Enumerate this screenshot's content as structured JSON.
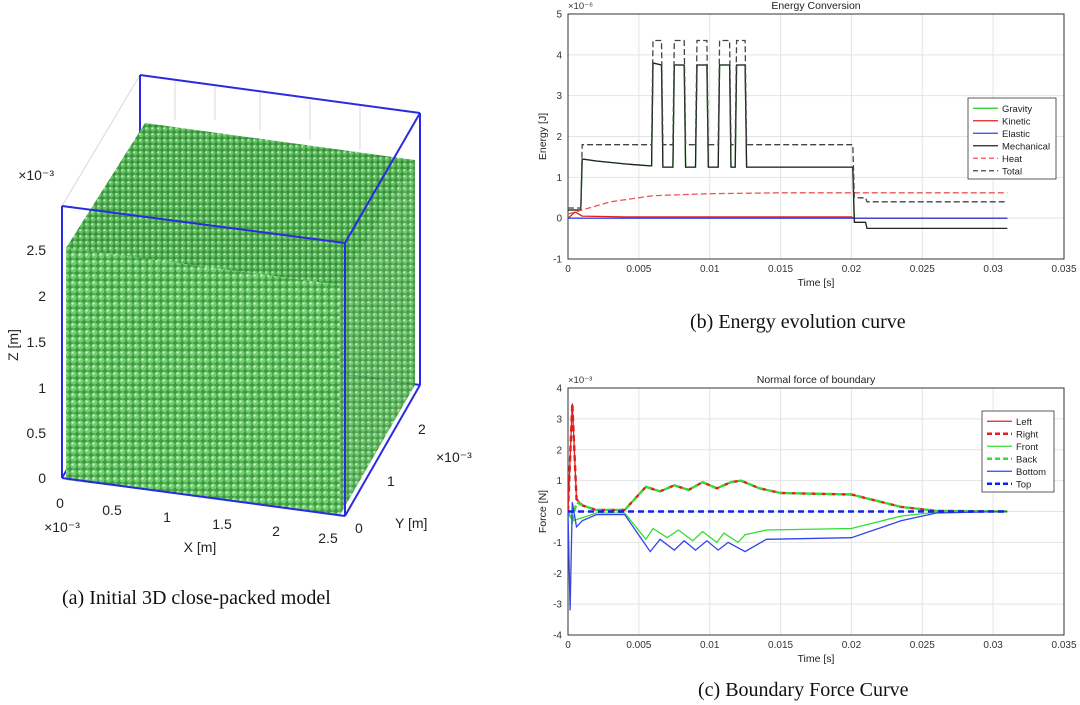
{
  "panel_a": {
    "caption": "(a) Initial 3D close-packed model",
    "z_label": "Z [m]",
    "x_label": "X [m]",
    "y_label": "Y [m]",
    "z_exp": "×10⁻³",
    "x_exp": "×10⁻³",
    "y_exp": "×10⁻³",
    "z_ticks": [
      "0",
      "0.5",
      "1",
      "1.5",
      "2",
      "2.5"
    ],
    "x_ticks": [
      "0",
      "0.5",
      "1",
      "1.5",
      "2",
      "2.5"
    ],
    "y_ticks": [
      "0",
      "1",
      "2"
    ],
    "particle_color": "#5cc15c",
    "frame_color": "#2a2ae0"
  },
  "panel_b": {
    "caption": "(b) Energy evolution curve",
    "chart_data": {
      "type": "line",
      "title": "Energy Conversion",
      "xlabel": "Time [s]",
      "ylabel": "Energy [J]",
      "y_multiplier": "×10⁻⁶",
      "xlim": [
        0,
        0.035
      ],
      "ylim": [
        -1,
        5
      ],
      "x_ticks": [
        "0",
        "0.005",
        "0.01",
        "0.015",
        "0.02",
        "0.025",
        "0.03",
        "0.035"
      ],
      "y_ticks": [
        "-1",
        "0",
        "1",
        "2",
        "3",
        "4",
        "5"
      ],
      "legend_position": "right",
      "series": [
        {
          "name": "Gravity",
          "color": "#22cc22",
          "dash": "solid",
          "points": [
            [
              0,
              0.2
            ],
            [
              0.0009,
              0.2
            ],
            [
              0.001,
              1.45
            ],
            [
              0.002,
              1.4
            ],
            [
              0.004,
              1.33
            ],
            [
              0.0058,
              1.28
            ],
            [
              0.0059,
              1.28
            ],
            [
              0.006,
              3.8
            ],
            [
              0.0066,
              3.75
            ],
            [
              0.0067,
              1.25
            ],
            [
              0.0074,
              1.25
            ],
            [
              0.0075,
              3.75
            ],
            [
              0.0082,
              3.75
            ],
            [
              0.0083,
              1.25
            ],
            [
              0.009,
              1.25
            ],
            [
              0.0091,
              3.75
            ],
            [
              0.0098,
              3.75
            ],
            [
              0.0099,
              1.25
            ],
            [
              0.0106,
              1.25
            ],
            [
              0.0107,
              3.75
            ],
            [
              0.0114,
              3.75
            ],
            [
              0.0115,
              1.25
            ],
            [
              0.0118,
              1.25
            ],
            [
              0.0119,
              3.75
            ],
            [
              0.0125,
              3.75
            ],
            [
              0.0126,
              1.25
            ],
            [
              0.0201,
              1.25
            ],
            [
              0.0202,
              0.0
            ],
            [
              0.031,
              0.0
            ]
          ]
        },
        {
          "name": "Kinetic",
          "color": "#e02020",
          "dash": "solid",
          "points": [
            [
              0,
              0.0
            ],
            [
              0.0005,
              0.15
            ],
            [
              0.001,
              0.05
            ],
            [
              0.004,
              0.03
            ],
            [
              0.02,
              0.03
            ],
            [
              0.0202,
              0.0
            ],
            [
              0.031,
              0.0
            ]
          ]
        },
        {
          "name": "Elastic",
          "color": "#3344ee",
          "dash": "solid",
          "points": [
            [
              0,
              0.0
            ],
            [
              0.031,
              0.0
            ]
          ]
        },
        {
          "name": "Mechanical",
          "color": "#222222",
          "dash": "solid",
          "points": [
            [
              0,
              0.2
            ],
            [
              0.0009,
              0.2
            ],
            [
              0.001,
              1.45
            ],
            [
              0.002,
              1.4
            ],
            [
              0.004,
              1.33
            ],
            [
              0.0058,
              1.28
            ],
            [
              0.0059,
              1.28
            ],
            [
              0.006,
              3.8
            ],
            [
              0.0066,
              3.75
            ],
            [
              0.0067,
              1.25
            ],
            [
              0.0074,
              1.25
            ],
            [
              0.0075,
              3.75
            ],
            [
              0.0082,
              3.75
            ],
            [
              0.0083,
              1.25
            ],
            [
              0.009,
              1.25
            ],
            [
              0.0091,
              3.75
            ],
            [
              0.0098,
              3.75
            ],
            [
              0.0099,
              1.25
            ],
            [
              0.0106,
              1.25
            ],
            [
              0.0107,
              3.75
            ],
            [
              0.0114,
              3.75
            ],
            [
              0.0115,
              1.25
            ],
            [
              0.0118,
              1.25
            ],
            [
              0.0119,
              3.75
            ],
            [
              0.0125,
              3.75
            ],
            [
              0.0126,
              1.25
            ],
            [
              0.0201,
              1.25
            ],
            [
              0.0202,
              -0.1
            ],
            [
              0.021,
              -0.1
            ],
            [
              0.0211,
              -0.25
            ],
            [
              0.031,
              -0.25
            ]
          ]
        },
        {
          "name": "Heat",
          "color": "#ee5555",
          "dash": "dashed",
          "points": [
            [
              0,
              0.1
            ],
            [
              0.001,
              0.2
            ],
            [
              0.003,
              0.4
            ],
            [
              0.006,
              0.55
            ],
            [
              0.01,
              0.6
            ],
            [
              0.015,
              0.62
            ],
            [
              0.02,
              0.62
            ],
            [
              0.031,
              0.62
            ]
          ]
        },
        {
          "name": "Total",
          "color": "#444444",
          "dash": "dashed",
          "points": [
            [
              0,
              0.25
            ],
            [
              0.0009,
              0.25
            ],
            [
              0.001,
              1.8
            ],
            [
              0.0058,
              1.8
            ],
            [
              0.0059,
              1.8
            ],
            [
              0.006,
              4.35
            ],
            [
              0.0066,
              4.35
            ],
            [
              0.0067,
              1.8
            ],
            [
              0.0074,
              1.8
            ],
            [
              0.0075,
              4.35
            ],
            [
              0.0082,
              4.35
            ],
            [
              0.0083,
              1.8
            ],
            [
              0.009,
              1.8
            ],
            [
              0.0091,
              4.35
            ],
            [
              0.0098,
              4.35
            ],
            [
              0.0099,
              1.8
            ],
            [
              0.0106,
              1.8
            ],
            [
              0.0107,
              4.35
            ],
            [
              0.0114,
              4.35
            ],
            [
              0.0115,
              1.8
            ],
            [
              0.0118,
              1.8
            ],
            [
              0.0119,
              4.35
            ],
            [
              0.0125,
              4.35
            ],
            [
              0.0126,
              1.8
            ],
            [
              0.0201,
              1.8
            ],
            [
              0.0202,
              0.5
            ],
            [
              0.021,
              0.5
            ],
            [
              0.0211,
              0.4
            ],
            [
              0.031,
              0.4
            ]
          ]
        }
      ]
    }
  },
  "panel_c": {
    "caption": "(c) Boundary Force Curve",
    "chart_data": {
      "type": "line",
      "title": "Normal force of boundary",
      "xlabel": "Time [s]",
      "ylabel": "Force [N]",
      "y_multiplier": "×10⁻³",
      "xlim": [
        0,
        0.035
      ],
      "ylim": [
        -4,
        4
      ],
      "x_ticks": [
        "0",
        "0.005",
        "0.01",
        "0.015",
        "0.02",
        "0.025",
        "0.03",
        "0.035"
      ],
      "y_ticks": [
        "-4",
        "-3",
        "-2",
        "-1",
        "0",
        "1",
        "2",
        "3",
        "4"
      ],
      "legend_position": "right",
      "series": [
        {
          "name": "Left",
          "color": "#e02020",
          "dash": "solid",
          "points": [
            [
              0,
              0
            ],
            [
              0.0003,
              3.5
            ],
            [
              0.0006,
              0.4
            ],
            [
              0.001,
              0.2
            ],
            [
              0.002,
              0.05
            ],
            [
              0.004,
              0.05
            ],
            [
              0.0055,
              0.8
            ],
            [
              0.0065,
              0.65
            ],
            [
              0.0075,
              0.85
            ],
            [
              0.0085,
              0.7
            ],
            [
              0.0095,
              0.95
            ],
            [
              0.0105,
              0.75
            ],
            [
              0.0115,
              0.95
            ],
            [
              0.0122,
              1.0
            ],
            [
              0.0135,
              0.75
            ],
            [
              0.015,
              0.6
            ],
            [
              0.02,
              0.55
            ],
            [
              0.0235,
              0.15
            ],
            [
              0.026,
              0.02
            ],
            [
              0.031,
              0.0
            ]
          ]
        },
        {
          "name": "Right",
          "color": "#e02020",
          "dash": "dashed",
          "points": [
            [
              0,
              0
            ],
            [
              0.0003,
              3.5
            ],
            [
              0.0006,
              0.4
            ],
            [
              0.001,
              0.2
            ],
            [
              0.002,
              0.05
            ],
            [
              0.004,
              0.05
            ],
            [
              0.0055,
              0.8
            ],
            [
              0.0065,
              0.65
            ],
            [
              0.0075,
              0.85
            ],
            [
              0.0085,
              0.7
            ],
            [
              0.0095,
              0.95
            ],
            [
              0.0105,
              0.75
            ],
            [
              0.0115,
              0.95
            ],
            [
              0.0122,
              1.0
            ],
            [
              0.0135,
              0.75
            ],
            [
              0.015,
              0.6
            ],
            [
              0.02,
              0.55
            ],
            [
              0.0235,
              0.15
            ],
            [
              0.026,
              0.02
            ],
            [
              0.031,
              0.0
            ]
          ]
        },
        {
          "name": "Front",
          "color": "#33dd33",
          "dash": "solid",
          "points": [
            [
              0,
              0
            ],
            [
              0.0003,
              -0.3
            ],
            [
              0.001,
              -0.2
            ],
            [
              0.002,
              -0.05
            ],
            [
              0.004,
              -0.05
            ],
            [
              0.0055,
              -0.9
            ],
            [
              0.006,
              -0.55
            ],
            [
              0.007,
              -0.85
            ],
            [
              0.0078,
              -0.6
            ],
            [
              0.0088,
              -0.95
            ],
            [
              0.0095,
              -0.65
            ],
            [
              0.0105,
              -1.0
            ],
            [
              0.011,
              -0.7
            ],
            [
              0.012,
              -1.0
            ],
            [
              0.0125,
              -0.75
            ],
            [
              0.014,
              -0.6
            ],
            [
              0.02,
              -0.55
            ],
            [
              0.0235,
              -0.15
            ],
            [
              0.026,
              -0.02
            ],
            [
              0.031,
              0.0
            ]
          ]
        },
        {
          "name": "Back",
          "color": "#33dd33",
          "dash": "dashed",
          "points": [
            [
              0,
              0
            ],
            [
              0.0003,
              -0.3
            ],
            [
              0.0006,
              0.3
            ],
            [
              0.001,
              0.2
            ],
            [
              0.002,
              0.05
            ],
            [
              0.004,
              0.05
            ],
            [
              0.0055,
              0.8
            ],
            [
              0.0065,
              0.65
            ],
            [
              0.0075,
              0.85
            ],
            [
              0.0085,
              0.7
            ],
            [
              0.0095,
              0.95
            ],
            [
              0.0105,
              0.75
            ],
            [
              0.0115,
              0.95
            ],
            [
              0.0122,
              1.0
            ],
            [
              0.0135,
              0.75
            ],
            [
              0.015,
              0.6
            ],
            [
              0.02,
              0.55
            ],
            [
              0.0235,
              0.15
            ],
            [
              0.026,
              0.02
            ],
            [
              0.031,
              0.0
            ]
          ]
        },
        {
          "name": "Bottom",
          "color": "#3344ee",
          "dash": "solid",
          "points": [
            [
              0,
              0
            ],
            [
              0.00015,
              -3.2
            ],
            [
              0.0003,
              0.3
            ],
            [
              0.0006,
              -0.5
            ],
            [
              0.001,
              -0.3
            ],
            [
              0.002,
              -0.1
            ],
            [
              0.004,
              -0.1
            ],
            [
              0.0058,
              -1.3
            ],
            [
              0.0065,
              -0.9
            ],
            [
              0.0075,
              -1.25
            ],
            [
              0.0082,
              -0.95
            ],
            [
              0.009,
              -1.25
            ],
            [
              0.0098,
              -0.95
            ],
            [
              0.0106,
              -1.25
            ],
            [
              0.0113,
              -1.0
            ],
            [
              0.0125,
              -1.3
            ],
            [
              0.014,
              -0.9
            ],
            [
              0.02,
              -0.85
            ],
            [
              0.0235,
              -0.3
            ],
            [
              0.026,
              -0.05
            ],
            [
              0.031,
              0.0
            ]
          ]
        },
        {
          "name": "Top",
          "color": "#1122ee",
          "dash": "dashed",
          "points": [
            [
              0,
              0
            ],
            [
              0.031,
              0
            ]
          ]
        }
      ]
    }
  }
}
